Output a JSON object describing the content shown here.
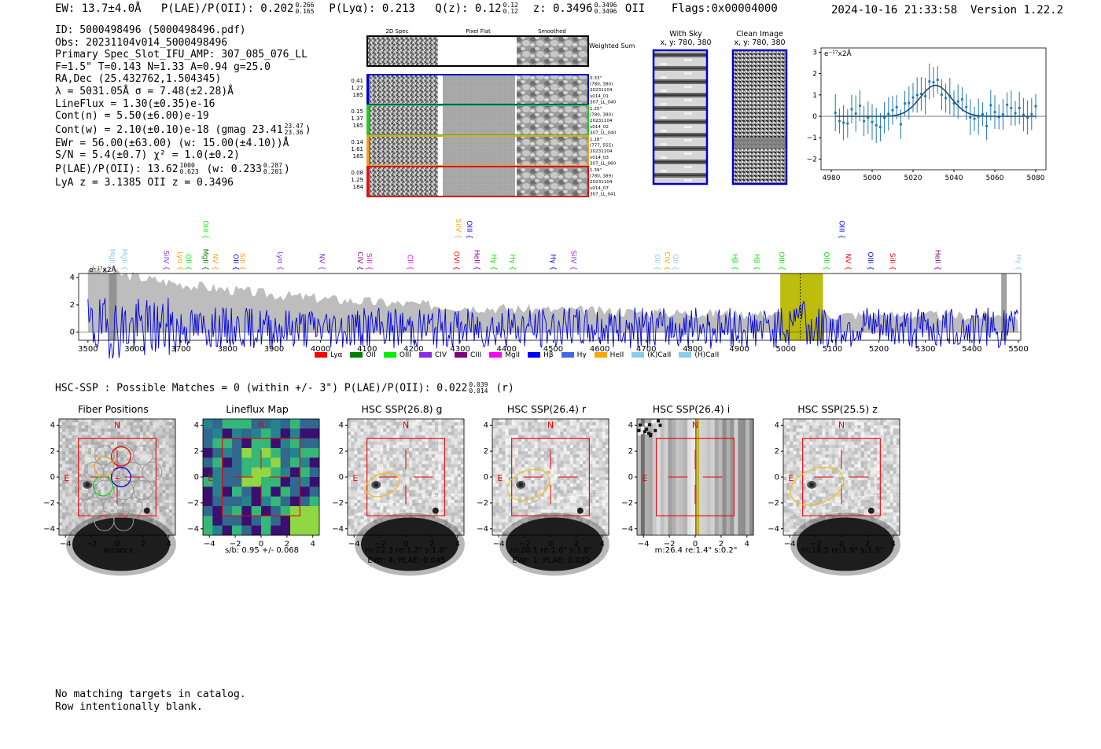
{
  "header": {
    "ew": "EW: 13.7±4.0Å",
    "plae_label": "P(LAE)/P(OII): 0.202",
    "plae_hi": "0.266",
    "plae_lo": "0.165",
    "plya": "P(Lyα): 0.213",
    "qz_label": "Q(z): 0.12",
    "qz_hi": "0.12",
    "qz_lo": "0.12",
    "z_label": "z: 0.3496",
    "z_hi": "0.3496",
    "z_lo": "0.3496",
    "z_line": "OII",
    "flags": "Flags:0x00004000",
    "timestamp": "2024-10-16 21:33:58",
    "version": "Version 1.22.2"
  },
  "info": {
    "id": "ID: 5000498496 (5000498496.pdf)",
    "obs": "Obs: 20231104v014_5000498496",
    "primary": "Primary Spec_Slot_IFU_AMP: 307_085_076_LL",
    "fiber": "F=1.5\"  T=0.143  N=1.33  A=0.94  g=25.0",
    "radec": "RA,Dec (25.432762,1.504345)",
    "lambda": "λ = 5031.05Å  σ = 7.48(±2.28)Å",
    "lineflux": "LineFlux = 1.30(±0.35)e-16",
    "contn": "Cont(n) = 5.50(±6.00)e-19",
    "contw": "Cont(w) = 2.10(±0.10)e-18 (gmag 23.41",
    "contw_hi": "23.47",
    "contw_lo": "23.36",
    "contw_end": ")",
    "ewr": "EWr = 56.00(±63.00) (w: 15.00(±4.10))Å",
    "sn": "S/N = 5.4(±0.7)  χ² = 1.0(±0.2)",
    "plae2": "P(LAE)/P(OII): 13.62",
    "plae2_hi": "1000",
    "plae2_lo": "0.623",
    "plae2_w": "(w: 0.233",
    "plae2_w_hi": "0.287",
    "plae2_w_lo": "0.201",
    "plae2_end": ")",
    "lya_z": "LyA z = 3.1385  OII z = 0.3496"
  },
  "stamps": {
    "col_titles": [
      "2D Spec",
      "Pixel Flat",
      "Smoothed"
    ],
    "weighted": "Weighted Sum",
    "rows": [
      {
        "left": [
          "0.41",
          "1.27",
          "185"
        ],
        "right": [
          "0.33\"",
          "(780, 380)",
          "20231104",
          "v014_01",
          "307_LL_040"
        ],
        "color": "#0000cc"
      },
      {
        "left": [
          "0.15",
          "1.37",
          "185"
        ],
        "right": [
          "1.25\"",
          "(780, 380)",
          "20231104",
          "v014_02",
          "307_LL_040"
        ],
        "color": "#22cc22"
      },
      {
        "left": [
          "0.14",
          "1.61",
          "165"
        ],
        "right": [
          "1.18\"",
          "(777, 555)",
          "20231104",
          "v014_03",
          "307_LL_060"
        ],
        "color": "#f0a020"
      },
      {
        "left": [
          "0.08",
          "1.29",
          "184"
        ],
        "right": [
          "1.39\"",
          "(780, 389)",
          "20231104",
          "v014_07",
          "307_LL_041"
        ],
        "color": "#dd1111"
      }
    ]
  },
  "sky_panels": {
    "with_sky_title": "With Sky",
    "with_sky_coords": "x, y: 780, 380",
    "clean_title": "Clean Image",
    "clean_coords": "x, y: 780, 380"
  },
  "line_fit": {
    "ylabel": "e⁻¹⁷x2Å",
    "xticks": [
      "4980",
      "5000",
      "5020",
      "5040",
      "5060",
      "5080"
    ],
    "yticks": [
      "3",
      "2",
      "1",
      "0",
      "−1",
      "−2"
    ]
  },
  "spectrum": {
    "ylabel": "e⁻¹⁷x2Å",
    "yticks": [
      "4",
      "2",
      "0"
    ],
    "xticks": [
      "3500",
      "3600",
      "3700",
      "3800",
      "3900",
      "4000",
      "4100",
      "4200",
      "4300",
      "4400",
      "4500",
      "4600",
      "4700",
      "4800",
      "4900",
      "5000",
      "5100",
      "5200",
      "5300",
      "5400",
      "5500"
    ],
    "legend": [
      {
        "label": "Lyα",
        "color": "#ff0000"
      },
      {
        "label": "OII",
        "color": "#008000"
      },
      {
        "label": "OIII",
        "color": "#00ee00"
      },
      {
        "label": "CIV",
        "color": "#8a2be2"
      },
      {
        "label": "CIII",
        "color": "#800080"
      },
      {
        "label": "MgII",
        "color": "#ff00ff"
      },
      {
        "label": "Hβ",
        "color": "#0000ff"
      },
      {
        "label": "Hγ",
        "color": "#4169e1"
      },
      {
        "label": "HeII",
        "color": "#ffa500"
      },
      {
        "label": "(K)CaII",
        "color": "#87ceeb"
      },
      {
        "label": "(H)CaII",
        "color": "#87ceeb"
      }
    ],
    "line_labels": [
      {
        "t": "MgII",
        "c": "#87ceeb",
        "w": 3552,
        "row": 0
      },
      {
        "t": "MgII",
        "c": "#87ceeb",
        "w": 3578,
        "row": 0
      },
      {
        "t": "SiIV",
        "c": "#8a2be2",
        "w": 3668,
        "row": 0
      },
      {
        "t": "Lyα",
        "c": "#ffa500",
        "w": 3698,
        "row": 0
      },
      {
        "t": "OII",
        "c": "#00ee00",
        "w": 3715,
        "row": 0
      },
      {
        "t": "MgII",
        "c": "#008000",
        "w": 3752,
        "row": 0
      },
      {
        "t": "OIII",
        "c": "#00ee00",
        "w": 3752,
        "row": 1
      },
      {
        "t": "NV",
        "c": "#ffa500",
        "w": 3773,
        "row": 0
      },
      {
        "t": "OII",
        "c": "#0000ff",
        "w": 3817,
        "row": 0
      },
      {
        "t": "SiII",
        "c": "#ffa500",
        "w": 3832,
        "row": 0
      },
      {
        "t": "Lyα",
        "c": "#8a2be2",
        "w": 3913,
        "row": 0
      },
      {
        "t": "NV",
        "c": "#8a2be2",
        "w": 4002,
        "row": 0
      },
      {
        "t": "CIV",
        "c": "#800080",
        "w": 4084,
        "row": 0
      },
      {
        "t": "SiII",
        "c": "#ff00ff",
        "w": 4104,
        "row": 0
      },
      {
        "t": "CII",
        "c": "#ff00ff",
        "w": 4192,
        "row": 0
      },
      {
        "t": "SiIV",
        "c": "#ffa500",
        "w": 4296,
        "row": 1
      },
      {
        "t": "OIII",
        "c": "#0000ff",
        "w": 4319,
        "row": 1
      },
      {
        "t": "OVI",
        "c": "#ff0000",
        "w": 4291,
        "row": 0
      },
      {
        "t": "HeII",
        "c": "#800080",
        "w": 4335,
        "row": 0
      },
      {
        "t": "Hγ",
        "c": "#00ee00",
        "w": 4372,
        "row": 0
      },
      {
        "t": "Hγ",
        "c": "#00ee00",
        "w": 4412,
        "row": 0
      },
      {
        "t": "Hγ",
        "c": "#0000ff",
        "w": 4499,
        "row": 0
      },
      {
        "t": "SiIV",
        "c": "#8a2be2",
        "w": 4543,
        "row": 0
      },
      {
        "t": "OII",
        "c": "#87ceeb",
        "w": 4723,
        "row": 0
      },
      {
        "t": "CIV",
        "c": "#ffa500",
        "w": 4744,
        "row": 0
      },
      {
        "t": "OII",
        "c": "#87ceeb",
        "w": 4762,
        "row": 0
      },
      {
        "t": "Hβ",
        "c": "#00ee00",
        "w": 4890,
        "row": 0
      },
      {
        "t": "Hβ",
        "c": "#00ee00",
        "w": 4937,
        "row": 0
      },
      {
        "t": "OIII",
        "c": "#00ee00",
        "w": 4990,
        "row": 0
      },
      {
        "t": "OIII",
        "c": "#00ee00",
        "w": 5087,
        "row": 0
      },
      {
        "t": "OIII",
        "c": "#0000ff",
        "w": 5120,
        "row": 1
      },
      {
        "t": "NV",
        "c": "#ff0000",
        "w": 5133,
        "row": 0
      },
      {
        "t": "OIII",
        "c": "#0000ff",
        "w": 5181,
        "row": 0
      },
      {
        "t": "SiII",
        "c": "#ff0000",
        "w": 5229,
        "row": 0
      },
      {
        "t": "HeII",
        "c": "#800080",
        "w": 5326,
        "row": 0
      },
      {
        "t": "Hγ",
        "c": "#87ceeb",
        "w": 5500,
        "row": 0
      }
    ]
  },
  "catalog": {
    "summary": "HSC-SSP : Possible Matches = 0 (within +/- 3\")  P(LAE)/P(OII): 0.022",
    "summary_hi": "0.039",
    "summary_lo": "0.014",
    "summary_end": "(r)"
  },
  "cutouts": {
    "ticks": [
      "−4",
      "−2",
      "0",
      "2",
      "4"
    ],
    "panels": [
      {
        "title": "Fiber Positions",
        "caption1": "arcsecs",
        "caption2": "",
        "kind": "fiber"
      },
      {
        "title": "Lineflux Map",
        "caption1": "s/b: 0.95 +/- 0.068",
        "caption2": "",
        "kind": "lineflux"
      },
      {
        "title": "HSC SSP(26.8) g",
        "caption1": "m:22.3  re:1.2\"  s:1.8\"",
        "caption2": "EWr: 4, PLAE: 0.045",
        "kind": "g"
      },
      {
        "title": "HSC SSP(26.4) r",
        "caption1": "m:20.1  re:1.6\"  s:1.8\"",
        "caption2": "EWr: 1, PLAE: 0.022",
        "kind": "r"
      },
      {
        "title": "HSC SSP(26.4) i",
        "caption1": "m:26.4  re:1.4\"  s:0.2\"",
        "caption2": "",
        "kind": "i"
      },
      {
        "title": "HSC SSP(25.5) z",
        "caption1": "m:18.5  re:1.9\"  s:1.9\"",
        "caption2": "",
        "kind": "z"
      }
    ],
    "n_label": "N",
    "e_label": "E"
  },
  "footer": {
    "line1": "No matching targets in catalog.",
    "line2": "Row intentionally blank."
  }
}
